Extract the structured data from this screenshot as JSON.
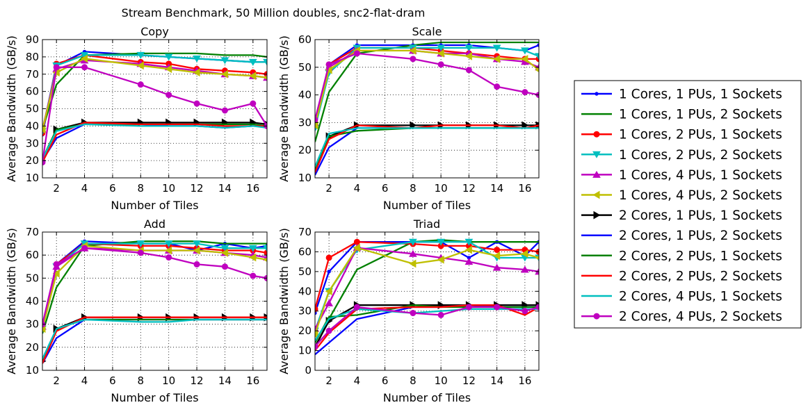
{
  "figure": {
    "title": "Stream Benchmark, 50 Million doubles, snc2-flat-dram"
  },
  "legend": {
    "placement": "right",
    "entries": [
      {
        "label": "1 Cores, 1 PUs, 1 Sockets",
        "color": "#0000ff",
        "marker": "point"
      },
      {
        "label": "1 Cores, 1 PUs, 2 Sockets",
        "color": "#008000",
        "marker": "pixel"
      },
      {
        "label": "1 Cores, 2 PUs, 1 Sockets",
        "color": "#ff0000",
        "marker": "circle"
      },
      {
        "label": "1 Cores, 2 PUs, 2 Sockets",
        "color": "#00bfbf",
        "marker": "triangle_down"
      },
      {
        "label": "1 Cores, 4 PUs, 1 Sockets",
        "color": "#bf00bf",
        "marker": "triangle_up"
      },
      {
        "label": "1 Cores, 4 PUs, 2 Sockets",
        "color": "#bfbf00",
        "marker": "triangle_left"
      },
      {
        "label": "2 Cores, 1 PUs, 1 Sockets",
        "color": "#000000",
        "marker": "triangle_right"
      },
      {
        "label": "2 Cores, 1 PUs, 2 Sockets",
        "color": "#0000ff",
        "marker": "none"
      },
      {
        "label": "2 Cores, 2 PUs, 1 Sockets",
        "color": "#008000",
        "marker": "none"
      },
      {
        "label": "2 Cores, 2 PUs, 2 Sockets",
        "color": "#ff0000",
        "marker": "none"
      },
      {
        "label": "2 Cores, 4 PUs, 1 Sockets",
        "color": "#00bfbf",
        "marker": "none"
      },
      {
        "label": "2 Cores, 4 PUs, 2 Sockets",
        "color": "#bf00bf",
        "marker": "circle"
      }
    ]
  },
  "chart_data": [
    {
      "type": "line",
      "title": "Copy",
      "xlabel": "Number of Tiles",
      "ylabel": "Average Bandwidth (GB/s)",
      "xlim": [
        1,
        17
      ],
      "ylim": [
        10,
        90
      ],
      "xticks": [
        2,
        4,
        6,
        8,
        10,
        12,
        14,
        16
      ],
      "yticks": [
        10,
        20,
        30,
        40,
        50,
        60,
        70,
        80,
        90
      ],
      "grid": true,
      "x": [
        1,
        2,
        4,
        8,
        10,
        12,
        14,
        16,
        17
      ],
      "series": [
        {
          "name": "1 Cores, 1 PUs, 1 Sockets",
          "values": [
            35,
            75,
            83,
            81,
            80,
            79,
            78,
            77,
            77
          ]
        },
        {
          "name": "1 Cores, 1 PUs, 2 Sockets",
          "values": [
            38,
            64,
            81,
            82,
            82,
            82,
            81,
            81,
            80
          ]
        },
        {
          "name": "1 Cores, 2 PUs, 1 Sockets",
          "values": [
            36,
            76,
            81,
            77,
            76,
            73,
            72,
            71,
            70
          ]
        },
        {
          "name": "1 Cores, 2 PUs, 2 Sockets",
          "values": [
            37,
            75,
            81,
            81,
            80,
            79,
            78,
            77,
            77
          ]
        },
        {
          "name": "1 Cores, 4 PUs, 1 Sockets",
          "values": [
            38,
            73,
            78,
            76,
            74,
            72,
            70,
            69,
            68
          ]
        },
        {
          "name": "1 Cores, 4 PUs, 2 Sockets",
          "values": [
            38,
            71,
            79,
            75,
            73,
            71,
            70,
            69,
            68
          ]
        },
        {
          "name": "2 Cores, 1 PUs, 1 Sockets",
          "values": [
            20,
            38,
            42,
            42,
            42,
            42,
            42,
            42,
            41
          ]
        },
        {
          "name": "2 Cores, 1 PUs, 2 Sockets",
          "values": [
            20,
            33,
            41,
            41,
            40,
            40,
            39,
            40,
            40
          ]
        },
        {
          "name": "2 Cores, 2 PUs, 1 Sockets",
          "values": [
            21,
            38,
            41,
            41,
            41,
            41,
            41,
            41,
            40
          ]
        },
        {
          "name": "2 Cores, 2 PUs, 2 Sockets",
          "values": [
            19,
            35,
            42,
            41,
            41,
            41,
            40,
            40,
            40
          ]
        },
        {
          "name": "2 Cores, 4 PUs, 1 Sockets",
          "values": [
            21,
            37,
            41,
            40,
            40,
            40,
            39,
            40,
            39
          ]
        },
        {
          "name": "2 Cores, 4 PUs, 2 Sockets",
          "values": [
            19,
            74,
            74,
            64,
            58,
            53,
            49,
            53,
            40
          ]
        }
      ]
    },
    {
      "type": "line",
      "title": "Scale",
      "xlabel": "Number of Tiles",
      "ylabel": "Average Bandwidth (GB/s)",
      "xlim": [
        1,
        17
      ],
      "ylim": [
        10,
        60
      ],
      "xticks": [
        2,
        4,
        6,
        8,
        10,
        12,
        14,
        16
      ],
      "yticks": [
        10,
        20,
        30,
        40,
        50,
        60
      ],
      "grid": true,
      "x": [
        1,
        2,
        4,
        8,
        10,
        12,
        14,
        16,
        17
      ],
      "series": [
        {
          "name": "1 Cores, 1 PUs, 1 Sockets",
          "values": [
            30,
            51,
            58,
            58,
            58,
            58,
            57,
            56,
            58
          ]
        },
        {
          "name": "1 Cores, 1 PUs, 2 Sockets",
          "values": [
            23,
            41,
            55,
            58,
            59,
            59,
            59,
            59,
            59
          ]
        },
        {
          "name": "1 Cores, 2 PUs, 1 Sockets",
          "values": [
            30,
            51,
            57,
            57,
            56,
            55,
            54,
            53,
            53
          ]
        },
        {
          "name": "1 Cores, 2 PUs, 2 Sockets",
          "values": [
            28,
            48,
            57,
            57,
            57,
            57,
            57,
            56,
            54
          ]
        },
        {
          "name": "1 Cores, 4 PUs, 1 Sockets",
          "values": [
            30,
            50,
            56,
            56,
            55,
            55,
            53,
            52,
            50
          ]
        },
        {
          "name": "1 Cores, 4 PUs, 2 Sockets",
          "values": [
            29,
            49,
            56,
            56,
            55,
            54,
            53,
            53,
            49
          ]
        },
        {
          "name": "2 Cores, 1 PUs, 1 Sockets",
          "values": [
            13,
            25,
            29,
            29,
            29,
            29,
            29,
            29,
            29
          ]
        },
        {
          "name": "2 Cores, 1 PUs, 2 Sockets",
          "values": [
            11,
            21,
            28,
            28,
            28,
            28,
            28,
            28,
            28
          ]
        },
        {
          "name": "2 Cores, 2 PUs, 1 Sockets",
          "values": [
            13,
            25,
            27,
            28,
            28,
            28,
            28,
            28,
            28
          ]
        },
        {
          "name": "2 Cores, 2 PUs, 2 Sockets",
          "values": [
            12,
            24,
            29,
            28,
            29,
            29,
            29,
            28,
            29
          ]
        },
        {
          "name": "2 Cores, 4 PUs, 1 Sockets",
          "values": [
            14,
            26,
            28,
            28,
            28,
            28,
            28,
            28,
            28
          ]
        },
        {
          "name": "2 Cores, 4 PUs, 2 Sockets",
          "values": [
            31,
            51,
            55,
            53,
            51,
            49,
            43,
            41,
            40
          ]
        }
      ]
    },
    {
      "type": "line",
      "title": "Add",
      "xlabel": "Number of Tiles",
      "ylabel": "Average Bandwidth (GB/s)",
      "xlim": [
        1,
        17
      ],
      "ylim": [
        10,
        70
      ],
      "xticks": [
        2,
        4,
        6,
        8,
        10,
        12,
        14,
        16
      ],
      "yticks": [
        10,
        20,
        30,
        40,
        50,
        60,
        70
      ],
      "grid": true,
      "x": [
        1,
        2,
        4,
        8,
        10,
        12,
        14,
        16,
        17
      ],
      "series": [
        {
          "name": "1 Cores, 1 PUs, 1 Sockets",
          "values": [
            28,
            56,
            66,
            65,
            65,
            62,
            65,
            63,
            64
          ]
        },
        {
          "name": "1 Cores, 1 PUs, 2 Sockets",
          "values": [
            26,
            46,
            64,
            66,
            66,
            66,
            65,
            65,
            65
          ]
        },
        {
          "name": "1 Cores, 2 PUs, 1 Sockets",
          "values": [
            29,
            56,
            65,
            64,
            64,
            63,
            62,
            62,
            61
          ]
        },
        {
          "name": "1 Cores, 2 PUs, 2 Sockets",
          "values": [
            28,
            55,
            65,
            65,
            65,
            65,
            63,
            63,
            63
          ]
        },
        {
          "name": "1 Cores, 4 PUs, 1 Sockets",
          "values": [
            29,
            55,
            63,
            62,
            62,
            62,
            61,
            60,
            59
          ]
        },
        {
          "name": "1 Cores, 4 PUs, 2 Sockets",
          "values": [
            28,
            52,
            64,
            62,
            62,
            62,
            61,
            59,
            58
          ]
        },
        {
          "name": "2 Cores, 1 PUs, 1 Sockets",
          "values": [
            14,
            28,
            33,
            33,
            33,
            33,
            33,
            33,
            33
          ]
        },
        {
          "name": "2 Cores, 1 PUs, 2 Sockets",
          "values": [
            13,
            24,
            32,
            32,
            32,
            32,
            32,
            32,
            32
          ]
        },
        {
          "name": "2 Cores, 2 PUs, 1 Sockets",
          "values": [
            14,
            28,
            32,
            32,
            32,
            32,
            32,
            32,
            32
          ]
        },
        {
          "name": "2 Cores, 2 PUs, 2 Sockets",
          "values": [
            13,
            27,
            33,
            33,
            33,
            33,
            33,
            33,
            33
          ]
        },
        {
          "name": "2 Cores, 4 PUs, 1 Sockets",
          "values": [
            15,
            28,
            32,
            31,
            31,
            32,
            32,
            32,
            32
          ]
        },
        {
          "name": "2 Cores, 4 PUs, 2 Sockets",
          "values": [
            30,
            56,
            63,
            61,
            59,
            56,
            55,
            51,
            50
          ]
        }
      ]
    },
    {
      "type": "line",
      "title": "Triad",
      "xlabel": "Number of Tiles",
      "ylabel": "Average Bandwidth (GB/s)",
      "xlim": [
        1,
        17
      ],
      "ylim": [
        0,
        70
      ],
      "xticks": [
        2,
        4,
        6,
        8,
        10,
        12,
        14,
        16
      ],
      "yticks": [
        0,
        10,
        20,
        30,
        40,
        50,
        60,
        70
      ],
      "grid": true,
      "x": [
        1,
        2,
        4,
        8,
        10,
        12,
        14,
        16,
        17
      ],
      "series": [
        {
          "name": "1 Cores, 1 PUs, 1 Sockets",
          "values": [
            29,
            50,
            65,
            65,
            65,
            57,
            65,
            58,
            65
          ]
        },
        {
          "name": "1 Cores, 1 PUs, 2 Sockets",
          "values": [
            11,
            26,
            51,
            65,
            66,
            65,
            65,
            65,
            65
          ]
        },
        {
          "name": "1 Cores, 2 PUs, 1 Sockets",
          "values": [
            31,
            57,
            65,
            64,
            63,
            63,
            61,
            61,
            60
          ]
        },
        {
          "name": "1 Cores, 2 PUs, 2 Sockets",
          "values": [
            20,
            40,
            61,
            65,
            65,
            65,
            57,
            57,
            57
          ]
        },
        {
          "name": "1 Cores, 4 PUs, 1 Sockets",
          "values": [
            21,
            34,
            62,
            59,
            57,
            55,
            52,
            51,
            50
          ]
        },
        {
          "name": "1 Cores, 4 PUs, 2 Sockets",
          "values": [
            18,
            40,
            62,
            54,
            56,
            61,
            58,
            59,
            57
          ]
        },
        {
          "name": "2 Cores, 1 PUs, 1 Sockets",
          "values": [
            12,
            25,
            33,
            33,
            33,
            33,
            33,
            33,
            33
          ]
        },
        {
          "name": "2 Cores, 1 PUs, 2 Sockets",
          "values": [
            8,
            14,
            26,
            32,
            32,
            33,
            32,
            32,
            32
          ]
        },
        {
          "name": "2 Cores, 2 PUs, 1 Sockets",
          "values": [
            14,
            27,
            28,
            33,
            32,
            32,
            32,
            32,
            32
          ]
        },
        {
          "name": "2 Cores, 2 PUs, 2 Sockets",
          "values": [
            10,
            19,
            31,
            32,
            32,
            33,
            33,
            28,
            32
          ]
        },
        {
          "name": "2 Cores, 4 PUs, 1 Sockets",
          "values": [
            15,
            26,
            31,
            29,
            30,
            31,
            31,
            31,
            31
          ]
        },
        {
          "name": "2 Cores, 4 PUs, 2 Sockets",
          "values": [
            12,
            20,
            32,
            29,
            28,
            32,
            32,
            30,
            32
          ]
        }
      ]
    }
  ]
}
